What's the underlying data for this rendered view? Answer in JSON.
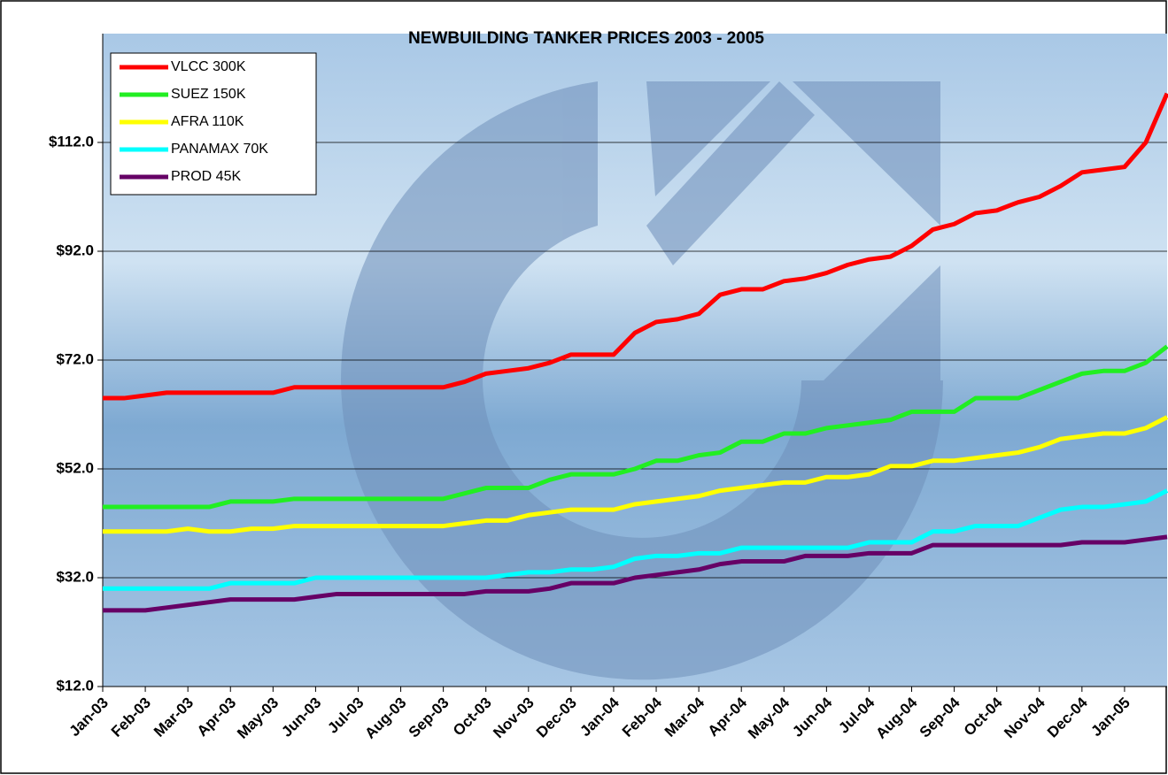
{
  "chart_data": {
    "type": "line",
    "title": "NEWBUILDING TANKER PRICES 2003 - 2005",
    "categories": [
      "Jan-03",
      null,
      "Feb-03",
      null,
      "Mar-03",
      null,
      "Apr-03",
      null,
      "May-03",
      null,
      "Jun-03",
      null,
      "Jul-03",
      null,
      "Aug-03",
      null,
      "Sep-03",
      null,
      "Oct-03",
      null,
      "Nov-03",
      null,
      "Dec-03",
      null,
      "Jan-04",
      null,
      "Feb-04",
      null,
      "Mar-04",
      null,
      "Apr-04",
      null,
      "May-04",
      null,
      "Jun-04",
      null,
      "Jul-04",
      null,
      "Aug-04",
      null,
      "Sep-04",
      null,
      "Oct-04",
      null,
      "Nov-04",
      null,
      "Dec-04",
      null,
      "Jan-05",
      null,
      null
    ],
    "series": [
      {
        "name": "VLCC 300K",
        "color": "#ff0000",
        "values": [
          65,
          65,
          65.5,
          66,
          66,
          66,
          66,
          66,
          66,
          67,
          67,
          67,
          67,
          67,
          67,
          67,
          67,
          68,
          69.5,
          70,
          70.5,
          71.5,
          73,
          73,
          73,
          77,
          79,
          79.5,
          80.5,
          84,
          85,
          85,
          86.5,
          87,
          88,
          89.5,
          90.5,
          91,
          93,
          96,
          97,
          99,
          99.5,
          101,
          102,
          104,
          106.5,
          107,
          107.5,
          112,
          121
        ]
      },
      {
        "name": "SUEZ 150K",
        "color": "#22ee22",
        "values": [
          45,
          45,
          45,
          45,
          45,
          45,
          46,
          46,
          46,
          46.5,
          46.5,
          46.5,
          46.5,
          46.5,
          46.5,
          46.5,
          46.5,
          47.5,
          48.5,
          48.5,
          48.5,
          50,
          51,
          51,
          51,
          52,
          53.5,
          53.5,
          54.5,
          55,
          57,
          57,
          58.5,
          58.5,
          59.5,
          60,
          60.5,
          61,
          62.5,
          62.5,
          62.5,
          65,
          65,
          65,
          66.5,
          68,
          69.5,
          70,
          70,
          71.5,
          74.5
        ]
      },
      {
        "name": "AFRA 110K",
        "color": "#ffff00",
        "values": [
          40.5,
          40.5,
          40.5,
          40.5,
          41,
          40.5,
          40.5,
          41,
          41,
          41.5,
          41.5,
          41.5,
          41.5,
          41.5,
          41.5,
          41.5,
          41.5,
          42,
          42.5,
          42.5,
          43.5,
          44,
          44.5,
          44.5,
          44.5,
          45.5,
          46,
          46.5,
          47,
          48,
          48.5,
          49,
          49.5,
          49.5,
          50.5,
          50.5,
          51,
          52.5,
          52.5,
          53.5,
          53.5,
          54,
          54.5,
          55,
          56,
          57.5,
          58,
          58.5,
          58.5,
          59.5,
          61.5
        ]
      },
      {
        "name": "PANAMAX 70K",
        "color": "#00ffff",
        "values": [
          30,
          30,
          30,
          30,
          30,
          30,
          31,
          31,
          31,
          31,
          32,
          32,
          32,
          32,
          32,
          32,
          32,
          32,
          32,
          32.5,
          33,
          33,
          33.5,
          33.5,
          34,
          35.5,
          36,
          36,
          36.5,
          36.5,
          37.5,
          37.5,
          37.5,
          37.5,
          37.5,
          37.5,
          38.5,
          38.5,
          38.5,
          40.5,
          40.5,
          41.5,
          41.5,
          41.5,
          43,
          44.5,
          45,
          45,
          45.5,
          46,
          48
        ]
      },
      {
        "name": "PROD 45K",
        "color": "#660066",
        "values": [
          26,
          26,
          26,
          26.5,
          27,
          27.5,
          28,
          28,
          28,
          28,
          28.5,
          29,
          29,
          29,
          29,
          29,
          29,
          29,
          29.5,
          29.5,
          29.5,
          30,
          31,
          31,
          31,
          32,
          32.5,
          33,
          33.5,
          34.5,
          35,
          35,
          35,
          36,
          36,
          36,
          36.5,
          36.5,
          36.5,
          38,
          38,
          38,
          38,
          38,
          38,
          38,
          38.5,
          38.5,
          38.5,
          39,
          39.5
        ]
      }
    ],
    "ylim": [
      12,
      132
    ],
    "yticks": [
      {
        "value": 12,
        "label": "$12.0"
      },
      {
        "value": 32,
        "label": "$32.0"
      },
      {
        "value": 52,
        "label": "$52.0"
      },
      {
        "value": 72,
        "label": "$72.0"
      },
      {
        "value": 92,
        "label": "$92.0"
      },
      {
        "value": 112,
        "label": "$112.0"
      }
    ],
    "grid": true,
    "legend": "top-left"
  }
}
